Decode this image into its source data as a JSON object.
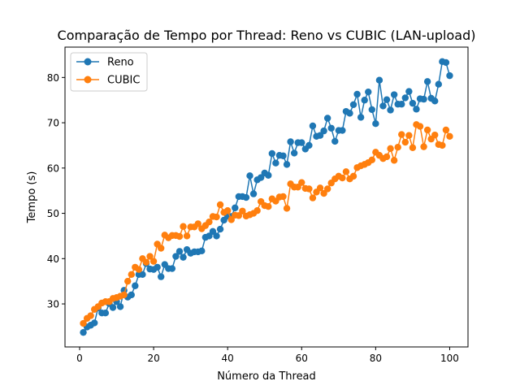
{
  "chart_data": {
    "type": "line",
    "title": "Comparação de Tempo por Thread: Reno vs CUBIC (LAN-upload)",
    "xlabel": "Número da Thread",
    "ylabel": "Tempo (s)",
    "xlim": [
      -3.95,
      104.95
    ],
    "ylim": [
      20.5,
      86.7
    ],
    "xticks": [
      0,
      20,
      40,
      60,
      80,
      100
    ],
    "yticks": [
      30,
      40,
      50,
      60,
      70,
      80
    ],
    "grid": false,
    "legend_position": "top-left",
    "x": [
      1,
      2,
      3,
      4,
      5,
      6,
      7,
      8,
      9,
      10,
      11,
      12,
      13,
      14,
      15,
      16,
      17,
      18,
      19,
      20,
      21,
      22,
      23,
      24,
      25,
      26,
      27,
      28,
      29,
      30,
      31,
      32,
      33,
      34,
      35,
      36,
      37,
      38,
      39,
      40,
      41,
      42,
      43,
      44,
      45,
      46,
      47,
      48,
      49,
      50,
      51,
      52,
      53,
      54,
      55,
      56,
      57,
      58,
      59,
      60,
      61,
      62,
      63,
      64,
      65,
      66,
      67,
      68,
      69,
      70,
      71,
      72,
      73,
      74,
      75,
      76,
      77,
      78,
      79,
      80,
      81,
      82,
      83,
      84,
      85,
      86,
      87,
      88,
      89,
      90,
      91,
      92,
      93,
      94,
      95,
      96,
      97,
      98,
      99,
      100
    ],
    "series": [
      {
        "name": "Reno",
        "color": "#1f77b4",
        "values": [
          23.7,
          24.9,
          25.3,
          25.8,
          29.1,
          28.0,
          28.0,
          30.1,
          29.2,
          30.5,
          29.4,
          33.0,
          31.5,
          32.0,
          34.0,
          36.5,
          36.5,
          38.9,
          37.7,
          37.6,
          38.1,
          36.0,
          38.7,
          37.8,
          37.8,
          40.5,
          41.6,
          40.3,
          42.0,
          41.2,
          41.5,
          41.5,
          41.7,
          44.7,
          45.0,
          46.0,
          45.0,
          46.5,
          48.5,
          49.4,
          49.3,
          51.2,
          53.7,
          53.7,
          53.5,
          58.3,
          54.3,
          57.4,
          57.9,
          58.9,
          58.4,
          63.2,
          61.1,
          62.8,
          62.7,
          60.8,
          65.8,
          63.3,
          65.6,
          65.6,
          64.2,
          65.0,
          69.3,
          67.0,
          67.2,
          68.2,
          71.0,
          68.8,
          65.9,
          68.3,
          68.3,
          72.5,
          72.1,
          74.0,
          76.3,
          71.2,
          75.0,
          76.8,
          72.9,
          69.8,
          79.4,
          73.7,
          75.1,
          72.8,
          76.2,
          74.1,
          74.1,
          75.5,
          76.9,
          74.3,
          73.0,
          75.3,
          75.2,
          79.1,
          75.4,
          74.8,
          78.5,
          83.5,
          83.3,
          80.4
        ]
      },
      {
        "name": "CUBIC",
        "color": "#ff7f0e",
        "values": [
          25.7,
          26.8,
          27.4,
          28.8,
          29.4,
          30.2,
          30.5,
          30.5,
          31.2,
          31.4,
          31.7,
          32.0,
          35.0,
          36.5,
          38.1,
          37.6,
          40.0,
          39.2,
          40.5,
          39.4,
          43.2,
          42.3,
          45.2,
          44.6,
          45.1,
          45.1,
          44.9,
          47.1,
          45.0,
          47.0,
          47.0,
          47.7,
          46.6,
          47.3,
          48.1,
          49.3,
          49.2,
          51.9,
          50.2,
          50.6,
          48.6,
          49.6,
          49.5,
          50.5,
          49.4,
          49.7,
          50.0,
          50.6,
          52.6,
          51.7,
          51.5,
          53.2,
          52.7,
          53.6,
          53.7,
          51.1,
          56.5,
          55.8,
          55.8,
          56.8,
          55.5,
          55.4,
          53.4,
          54.7,
          55.6,
          54.4,
          55.4,
          56.7,
          57.6,
          58.2,
          57.8,
          59.2,
          57.6,
          58.2,
          60.1,
          60.5,
          60.8,
          61.2,
          61.8,
          63.5,
          62.8,
          62.1,
          62.5,
          64.3,
          61.7,
          64.6,
          67.4,
          65.7,
          67.2,
          64.5,
          69.6,
          69.2,
          64.7,
          68.4,
          66.4,
          67.3,
          65.2,
          65.0,
          68.4,
          67.0
        ]
      }
    ]
  }
}
